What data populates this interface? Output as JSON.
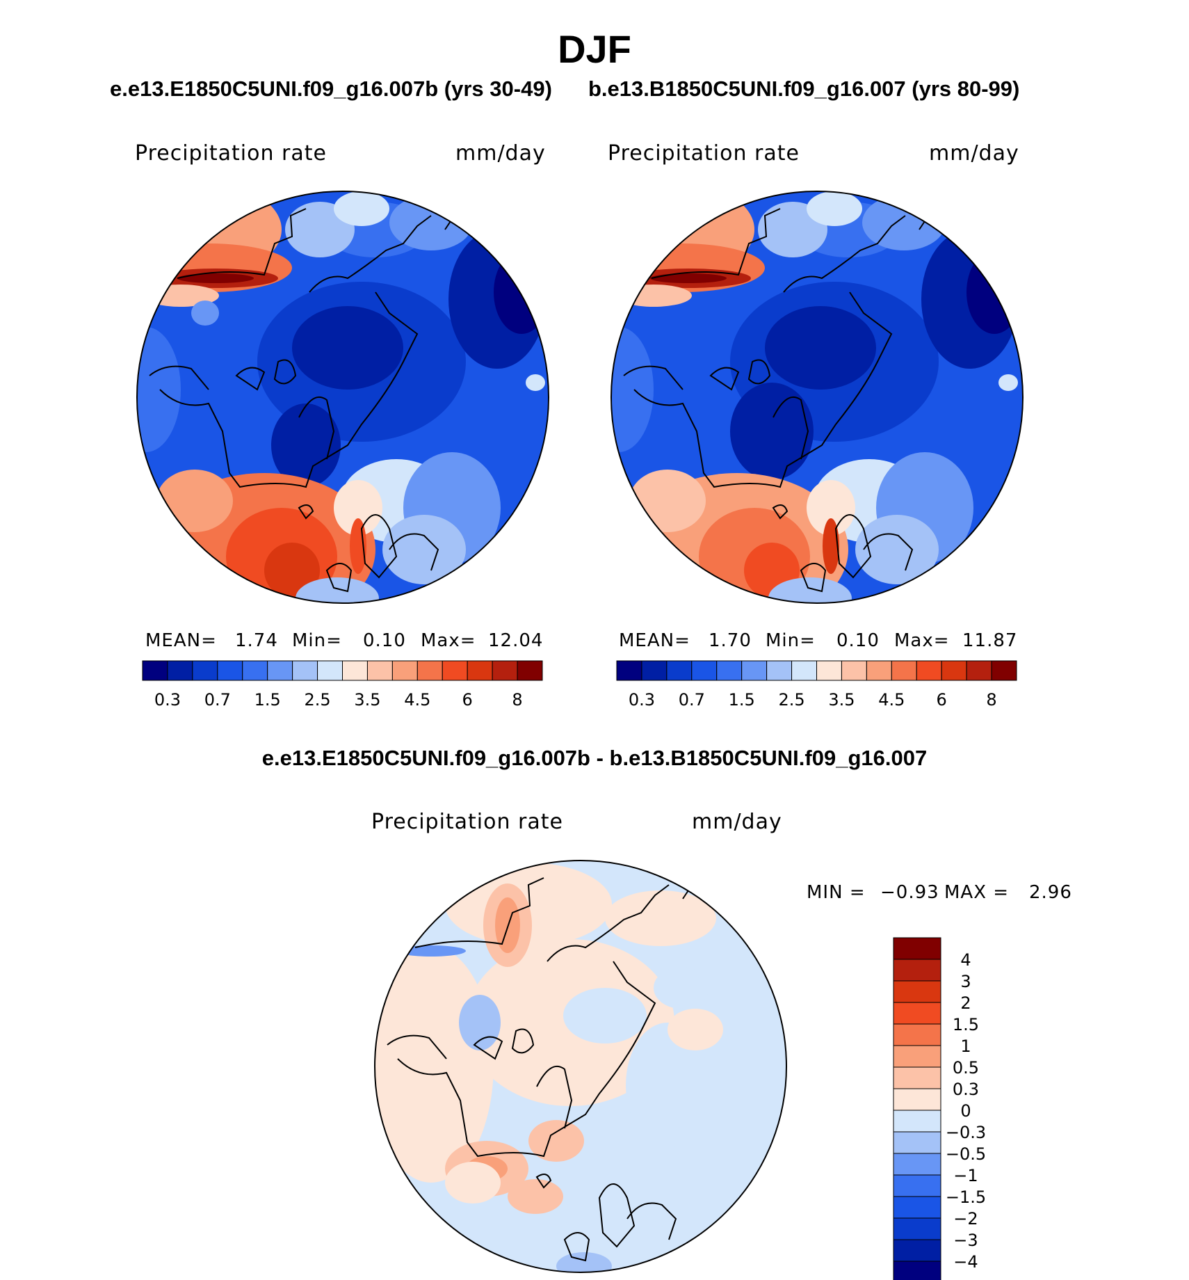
{
  "figure": {
    "title": "DJF",
    "case_left": "e.e13.E1850C5UNI.f09_g16.007b (yrs 30-49)",
    "case_right": "b.e13.B1850C5UNI.f09_g16.007 (yrs 80-99)",
    "diff_title": "e.e13.E1850C5UNI.f09_g16.007b - b.e13.B1850C5UNI.f09_g16.007"
  },
  "colors": {
    "mean_palette": [
      "#00007f",
      "#001fa4",
      "#0a3ccc",
      "#1a55e6",
      "#3870f0",
      "#6896f5",
      "#a4c2f7",
      "#d3e6fb",
      "#fde6d8",
      "#fcc2a8",
      "#f9a07a",
      "#f4744a",
      "#f04b22",
      "#d93710",
      "#b4200e",
      "#800000"
    ],
    "diff_palette": [
      "#00007f",
      "#001fa4",
      "#0a3ccc",
      "#1a55e6",
      "#3870f0",
      "#6896f5",
      "#a4c2f7",
      "#d3e6fb",
      "#fde6d8",
      "#fcc2a8",
      "#f9a07a",
      "#f4744a",
      "#f04b22",
      "#d93710",
      "#b4200e",
      "#800000"
    ],
    "coastline": "#000000"
  },
  "chart_data": [
    {
      "type": "heatmap",
      "projection": "north-polar-stereographic",
      "title": "Precipitation rate",
      "units": "mm/day",
      "stats": {
        "mean_label": "MEAN=",
        "mean": "1.74",
        "min_label": "Min=",
        "min": "0.10",
        "max_label": "Max=",
        "max": "12.04"
      },
      "colorbar_ticks": [
        "0.3",
        "0.7",
        "1.5",
        "2.5",
        "3.5",
        "4.5",
        "6",
        "8"
      ],
      "colorbar_orientation": "horizontal"
    },
    {
      "type": "heatmap",
      "projection": "north-polar-stereographic",
      "title": "Precipitation rate",
      "units": "mm/day",
      "stats": {
        "mean_label": "MEAN=",
        "mean": "1.70",
        "min_label": "Min=",
        "min": "0.10",
        "max_label": "Max=",
        "max": "11.87"
      },
      "colorbar_ticks": [
        "0.3",
        "0.7",
        "1.5",
        "2.5",
        "3.5",
        "4.5",
        "6",
        "8"
      ],
      "colorbar_orientation": "horizontal"
    },
    {
      "type": "heatmap",
      "projection": "north-polar-stereographic",
      "title": "Precipitation rate",
      "units": "mm/day",
      "stats": {
        "min_label": "MIN =",
        "min": "−0.93",
        "max_label": "MAX =",
        "max": "2.96"
      },
      "colorbar_ticks": [
        "4",
        "3",
        "2",
        "1.5",
        "1",
        "0.5",
        "0.3",
        "0",
        "−0.3",
        "−0.5",
        "−1",
        "−1.5",
        "−2",
        "−3",
        "−4"
      ],
      "colorbar_orientation": "vertical"
    }
  ]
}
